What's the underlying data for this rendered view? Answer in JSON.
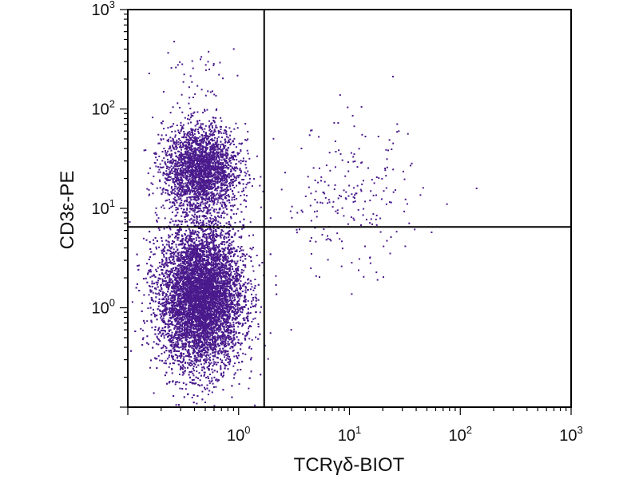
{
  "chart_data": {
    "type": "scatter",
    "title": "",
    "xlabel": "TCRγδ-BIOT",
    "ylabel": "CD3ε-PE",
    "x_scale": "log",
    "y_scale": "log",
    "xlim": [
      0.1,
      1000
    ],
    "ylim": [
      0.1,
      1000
    ],
    "x_ticks": [
      {
        "base": "10",
        "exp": "0",
        "value": 1
      },
      {
        "base": "10",
        "exp": "1",
        "value": 10
      },
      {
        "base": "10",
        "exp": "2",
        "value": 100
      },
      {
        "base": "10",
        "exp": "3",
        "value": 1000
      }
    ],
    "y_ticks": [
      {
        "base": "10",
        "exp": "0",
        "value": 1
      },
      {
        "base": "10",
        "exp": "1",
        "value": 10
      },
      {
        "base": "10",
        "exp": "2",
        "value": 100
      },
      {
        "base": "10",
        "exp": "3",
        "value": 1000
      }
    ],
    "quadrant_gate": {
      "x": 1.7,
      "y": 6.5
    },
    "point_color": "#4a1a8c",
    "clusters": [
      {
        "center": [
          0.45,
          1.3
        ],
        "spread": [
          0.19,
          0.36
        ],
        "count": 9000
      },
      {
        "center": [
          0.45,
          25
        ],
        "spread": [
          0.17,
          0.22
        ],
        "count": 2600
      },
      {
        "center": [
          10,
          12
        ],
        "spread": [
          0.32,
          0.38
        ],
        "count": 220
      },
      {
        "center": [
          0.4,
          200
        ],
        "spread": [
          0.18,
          0.22
        ],
        "count": 45
      }
    ],
    "grid": false,
    "legend": "none"
  }
}
